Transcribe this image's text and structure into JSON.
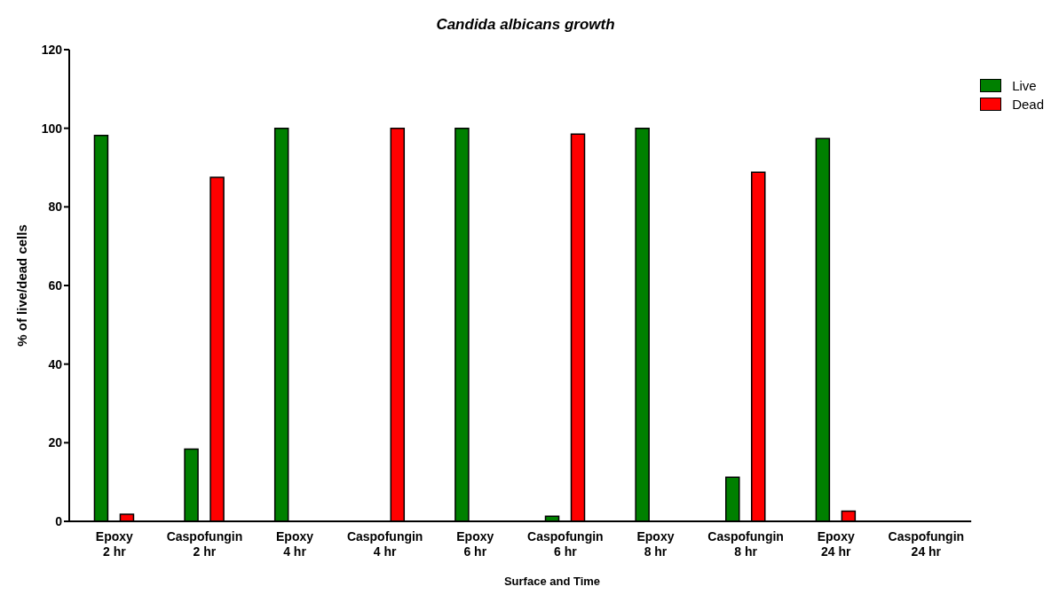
{
  "chart_data": {
    "type": "bar",
    "title": "Candida albicans growth",
    "xlabel": "Surface and Time",
    "ylabel": "% of live/dead cells",
    "categories": [
      "Epoxy\n2 hr",
      "Caspofungin\n2 hr",
      "Epoxy\n4 hr",
      "Caspofungin\n4 hr",
      "Epoxy\n6 hr",
      "Caspofungin\n6 hr",
      "Epoxy\n8 hr",
      "Caspofungin\n8 hr",
      "Epoxy\n24 hr",
      "Caspofungin\n24 hr"
    ],
    "series": [
      {
        "name": "Live",
        "color": "#008000",
        "values": [
          98.2,
          18.4,
          100,
          0,
          100,
          1.3,
          100,
          11.2,
          97.4,
          0
        ]
      },
      {
        "name": "Dead",
        "color": "#ff0000",
        "values": [
          1.8,
          87.5,
          0,
          100,
          0,
          98.5,
          0,
          88.8,
          2.6,
          0
        ]
      }
    ],
    "ylim": [
      0,
      120
    ],
    "yticks": [
      0,
      20,
      40,
      60,
      80,
      100,
      120
    ],
    "grid": false,
    "legend": "top right"
  }
}
